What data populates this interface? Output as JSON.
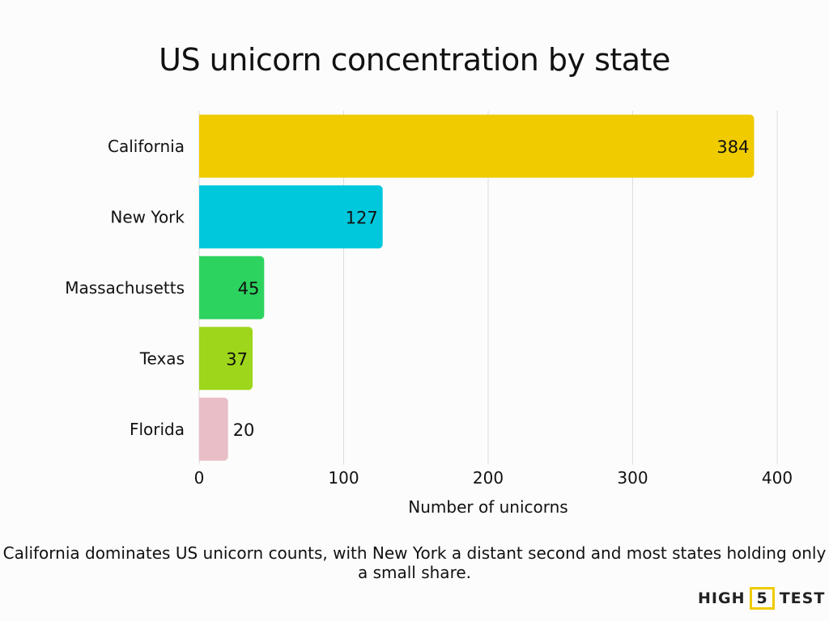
{
  "chart_data": {
    "type": "bar",
    "orientation": "horizontal",
    "title": "US unicorn concentration by state",
    "categories": [
      "California",
      "New York",
      "Massachusetts",
      "Texas",
      "Florida"
    ],
    "values": [
      384,
      127,
      45,
      37,
      20
    ],
    "colors": [
      "#f0cb00",
      "#00c8dc",
      "#2dd35f",
      "#9dd61a",
      "#e9bec6"
    ],
    "xlabel": "Number of unicorns",
    "ylabel": "",
    "xlim": [
      0,
      400
    ],
    "xticks": [
      0,
      100,
      200,
      300,
      400
    ],
    "grid": true,
    "data_labels": true
  },
  "caption": "California dominates US unicorn counts, with New York a distant second and most states holding only a small share.",
  "logo": {
    "left": "HIGH",
    "mid": "5",
    "right": "TEST",
    "accent": "#f0cb00"
  }
}
